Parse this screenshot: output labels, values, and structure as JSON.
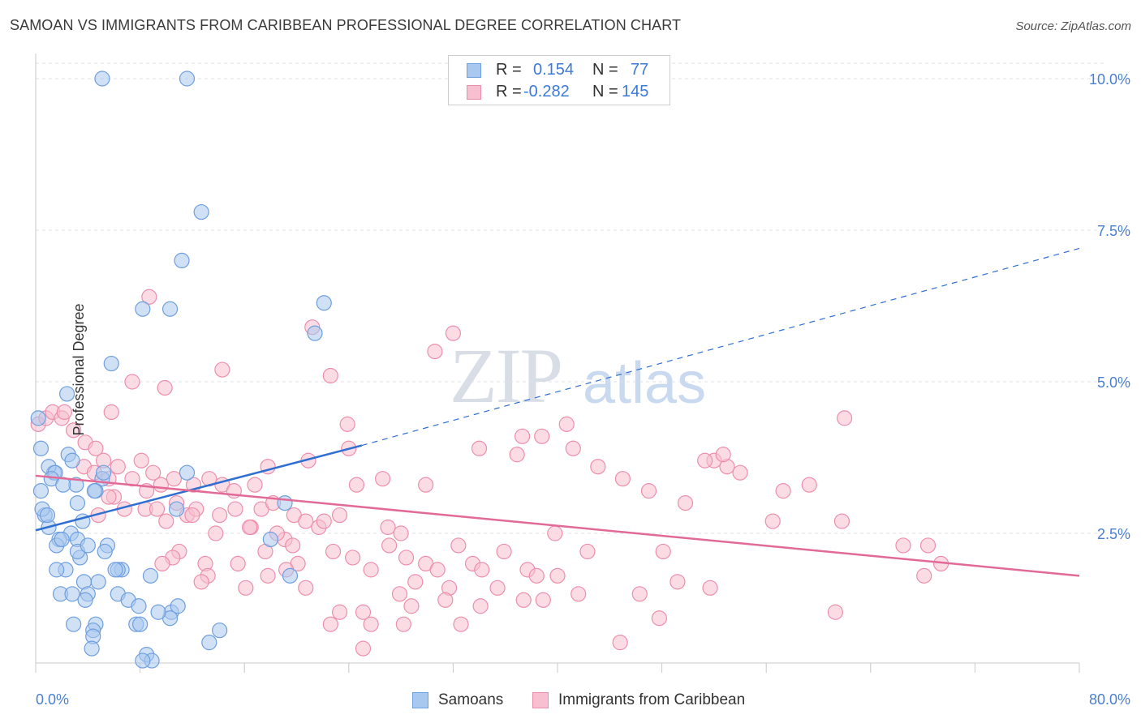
{
  "header": {
    "title": "SAMOAN VS IMMIGRANTS FROM CARIBBEAN PROFESSIONAL DEGREE CORRELATION CHART",
    "source": "Source: ZipAtlas.com"
  },
  "watermark": {
    "zip": "ZIP",
    "atlas": "atlas"
  },
  "legend_top": {
    "rows": [
      {
        "r_key": "R =",
        "r_val": "0.154",
        "n_key": "N =",
        "n_val": "77"
      },
      {
        "r_key": "R =",
        "r_val": "-0.282",
        "n_key": "N =",
        "n_val": "145"
      }
    ]
  },
  "legend_bottom": {
    "items": [
      "Samoans",
      "Immigrants from Caribbean"
    ]
  },
  "colors": {
    "blue_fill": "#a9c8ef",
    "blue_stroke": "#6f9fde",
    "blue_line": "#2f6fd1",
    "pink_fill": "#f7bfd0",
    "pink_stroke": "#ec8fad",
    "pink_line": "#e26a97",
    "tick_label": "#4a7fd0",
    "grid": "#dde2ea"
  },
  "chart_data": {
    "type": "scatter",
    "title": "SAMOAN VS IMMIGRANTS FROM CARIBBEAN PROFESSIONAL DEGREE CORRELATION CHART",
    "xlabel": "",
    "ylabel": "Professional Degree",
    "xlim": [
      0,
      80
    ],
    "ylim": [
      0,
      10.5
    ],
    "x_tick_labels": [
      "0.0%",
      "80.0%"
    ],
    "y_ticks": [
      2.5,
      5.0,
      7.5,
      10.0
    ],
    "y_tick_labels": [
      "2.5%",
      "5.0%",
      "7.5%",
      "10.0%"
    ],
    "grid": true,
    "legend_placement": "top-center",
    "series": [
      {
        "name": "Samoans",
        "R": 0.154,
        "N": 77,
        "trend": {
          "x": [
            0,
            25,
            80
          ],
          "y": [
            2.55,
            3.95,
            7.2
          ],
          "solid_until_x": 25
        },
        "points": [
          [
            5.1,
            10.0
          ],
          [
            11.6,
            10.0
          ],
          [
            12.7,
            7.8
          ],
          [
            11.2,
            7.0
          ],
          [
            10.3,
            6.2
          ],
          [
            8.2,
            6.2
          ],
          [
            22.1,
            6.3
          ],
          [
            21.4,
            5.8
          ],
          [
            5.8,
            5.3
          ],
          [
            2.4,
            4.8
          ],
          [
            0.2,
            4.4
          ],
          [
            0.4,
            3.9
          ],
          [
            2.5,
            3.8
          ],
          [
            1.4,
            3.5
          ],
          [
            2.8,
            3.7
          ],
          [
            1.0,
            3.6
          ],
          [
            1.5,
            3.5
          ],
          [
            3.1,
            3.3
          ],
          [
            5.1,
            3.4
          ],
          [
            5.2,
            3.5
          ],
          [
            0.4,
            3.2
          ],
          [
            4.6,
            3.2
          ],
          [
            3.2,
            3.0
          ],
          [
            11.6,
            3.5
          ],
          [
            19.1,
            3.0
          ],
          [
            10.8,
            2.9
          ],
          [
            0.7,
            2.8
          ],
          [
            0.5,
            2.9
          ],
          [
            1.0,
            2.6
          ],
          [
            3.6,
            2.7
          ],
          [
            2.7,
            2.5
          ],
          [
            1.8,
            2.4
          ],
          [
            3.2,
            2.4
          ],
          [
            5.5,
            2.3
          ],
          [
            1.6,
            2.3
          ],
          [
            5.3,
            2.2
          ],
          [
            3.4,
            2.1
          ],
          [
            2.3,
            1.9
          ],
          [
            1.6,
            1.9
          ],
          [
            6.6,
            1.9
          ],
          [
            6.3,
            1.9
          ],
          [
            8.8,
            1.8
          ],
          [
            4.8,
            1.7
          ],
          [
            19.5,
            1.8
          ],
          [
            18.0,
            2.4
          ],
          [
            1.9,
            1.5
          ],
          [
            3.7,
            1.7
          ],
          [
            6.3,
            1.5
          ],
          [
            2.8,
            1.5
          ],
          [
            4.0,
            1.5
          ],
          [
            3.8,
            1.4
          ],
          [
            7.1,
            1.4
          ],
          [
            7.9,
            1.3
          ],
          [
            10.4,
            1.2
          ],
          [
            10.9,
            1.3
          ],
          [
            2.9,
            1.0
          ],
          [
            4.6,
            1.0
          ],
          [
            4.4,
            0.9
          ],
          [
            7.7,
            1.0
          ],
          [
            8.0,
            1.0
          ],
          [
            14.1,
            0.9
          ],
          [
            4.4,
            0.8
          ],
          [
            4.3,
            0.6
          ],
          [
            13.3,
            0.7
          ],
          [
            8.5,
            0.5
          ],
          [
            8.9,
            0.4
          ],
          [
            8.2,
            0.4
          ],
          [
            10.3,
            1.1
          ],
          [
            0.9,
            2.8
          ],
          [
            1.2,
            3.4
          ],
          [
            2.1,
            3.3
          ],
          [
            4.5,
            3.2
          ],
          [
            6.1,
            1.9
          ],
          [
            9.4,
            1.2
          ],
          [
            3.2,
            2.2
          ],
          [
            4.0,
            2.3
          ],
          [
            2.0,
            2.4
          ]
        ]
      },
      {
        "name": "Immigrants from Caribbean",
        "R": -0.282,
        "N": 145,
        "trend": {
          "x": [
            0,
            80
          ],
          "y": [
            3.45,
            1.8
          ]
        },
        "points": [
          [
            0.2,
            4.3
          ],
          [
            0.8,
            4.4
          ],
          [
            1.3,
            4.5
          ],
          [
            2.0,
            4.4
          ],
          [
            2.2,
            4.5
          ],
          [
            2.9,
            4.2
          ],
          [
            3.8,
            4.0
          ],
          [
            4.6,
            3.9
          ],
          [
            3.7,
            3.6
          ],
          [
            5.2,
            3.7
          ],
          [
            4.5,
            3.5
          ],
          [
            6.3,
            3.6
          ],
          [
            5.6,
            3.4
          ],
          [
            7.4,
            3.4
          ],
          [
            8.1,
            3.7
          ],
          [
            9.0,
            3.5
          ],
          [
            9.6,
            3.3
          ],
          [
            10.6,
            3.4
          ],
          [
            12.1,
            3.3
          ],
          [
            13.3,
            3.4
          ],
          [
            14.3,
            3.3
          ],
          [
            15.2,
            3.2
          ],
          [
            16.8,
            3.3
          ],
          [
            17.8,
            3.6
          ],
          [
            6.0,
            3.1
          ],
          [
            8.4,
            2.9
          ],
          [
            10.8,
            3.0
          ],
          [
            11.6,
            2.8
          ],
          [
            12.3,
            2.9
          ],
          [
            14.1,
            2.8
          ],
          [
            9.3,
            2.9
          ],
          [
            10.0,
            2.7
          ],
          [
            15.3,
            2.9
          ],
          [
            16.5,
            2.6
          ],
          [
            17.3,
            2.9
          ],
          [
            18.2,
            3.0
          ],
          [
            19.8,
            2.8
          ],
          [
            20.7,
            2.7
          ],
          [
            21.7,
            2.6
          ],
          [
            22.1,
            2.7
          ],
          [
            23.3,
            2.8
          ],
          [
            24.6,
            3.3
          ],
          [
            26.6,
            3.4
          ],
          [
            27.0,
            2.6
          ],
          [
            28.0,
            2.5
          ],
          [
            29.9,
            3.3
          ],
          [
            13.8,
            2.5
          ],
          [
            16.4,
            2.6
          ],
          [
            19.1,
            2.4
          ],
          [
            20.1,
            2.0
          ],
          [
            19.7,
            2.3
          ],
          [
            17.6,
            2.2
          ],
          [
            15.5,
            2.0
          ],
          [
            13.0,
            2.0
          ],
          [
            11.0,
            2.2
          ],
          [
            10.5,
            2.1
          ],
          [
            9.7,
            2.0
          ],
          [
            13.2,
            1.8
          ],
          [
            12.7,
            1.7
          ],
          [
            16.1,
            1.6
          ],
          [
            17.8,
            1.8
          ],
          [
            19.2,
            1.9
          ],
          [
            20.7,
            1.6
          ],
          [
            22.8,
            2.2
          ],
          [
            24.3,
            2.1
          ],
          [
            25.7,
            1.9
          ],
          [
            27.1,
            2.3
          ],
          [
            28.4,
            2.1
          ],
          [
            29.1,
            1.7
          ],
          [
            29.9,
            2.0
          ],
          [
            30.8,
            1.9
          ],
          [
            31.7,
            1.6
          ],
          [
            32.4,
            2.3
          ],
          [
            33.5,
            2.0
          ],
          [
            34.2,
            1.9
          ],
          [
            35.9,
            2.2
          ],
          [
            37.7,
            1.9
          ],
          [
            38.4,
            1.8
          ],
          [
            39.8,
            2.5
          ],
          [
            38.9,
            1.4
          ],
          [
            35.4,
            1.6
          ],
          [
            34.1,
            1.3
          ],
          [
            31.4,
            1.4
          ],
          [
            28.8,
            1.3
          ],
          [
            27.9,
            1.5
          ],
          [
            25.1,
            1.2
          ],
          [
            23.3,
            1.2
          ],
          [
            22.6,
            1.0
          ],
          [
            25.7,
            1.0
          ],
          [
            28.2,
            1.0
          ],
          [
            32.6,
            1.0
          ],
          [
            25.1,
            0.6
          ],
          [
            37.4,
            1.4
          ],
          [
            40.0,
            1.8
          ],
          [
            41.6,
            1.5
          ],
          [
            42.3,
            2.2
          ],
          [
            44.8,
            0.7
          ],
          [
            46.3,
            1.5
          ],
          [
            47.8,
            1.1
          ],
          [
            48.1,
            2.2
          ],
          [
            49.2,
            1.7
          ],
          [
            45.0,
            3.4
          ],
          [
            43.1,
            3.6
          ],
          [
            40.7,
            4.3
          ],
          [
            41.2,
            3.9
          ],
          [
            37.3,
            4.1
          ],
          [
            38.8,
            4.1
          ],
          [
            34.0,
            3.9
          ],
          [
            36.9,
            3.8
          ],
          [
            47.0,
            3.2
          ],
          [
            49.8,
            3.0
          ],
          [
            52.0,
            3.7
          ],
          [
            53.0,
            3.6
          ],
          [
            51.3,
            3.7
          ],
          [
            52.7,
            3.8
          ],
          [
            54.0,
            3.5
          ],
          [
            56.5,
            2.7
          ],
          [
            57.3,
            3.2
          ],
          [
            59.3,
            3.3
          ],
          [
            61.8,
            2.7
          ],
          [
            62.0,
            4.4
          ],
          [
            61.3,
            1.2
          ],
          [
            66.5,
            2.3
          ],
          [
            68.4,
            2.3
          ],
          [
            69.4,
            2.0
          ],
          [
            68.1,
            1.8
          ],
          [
            51.7,
            1.6
          ],
          [
            30.6,
            5.5
          ],
          [
            32.0,
            5.8
          ],
          [
            21.2,
            5.9
          ],
          [
            14.3,
            5.2
          ],
          [
            22.6,
            5.1
          ],
          [
            7.4,
            5.0
          ],
          [
            9.9,
            4.9
          ],
          [
            5.8,
            4.5
          ],
          [
            23.9,
            4.3
          ],
          [
            8.7,
            6.4
          ],
          [
            12.0,
            2.8
          ],
          [
            8.5,
            3.2
          ],
          [
            6.8,
            2.9
          ],
          [
            4.8,
            2.8
          ],
          [
            5.6,
            3.1
          ],
          [
            18.5,
            2.5
          ],
          [
            20.9,
            3.7
          ],
          [
            24.0,
            3.9
          ]
        ]
      }
    ]
  }
}
